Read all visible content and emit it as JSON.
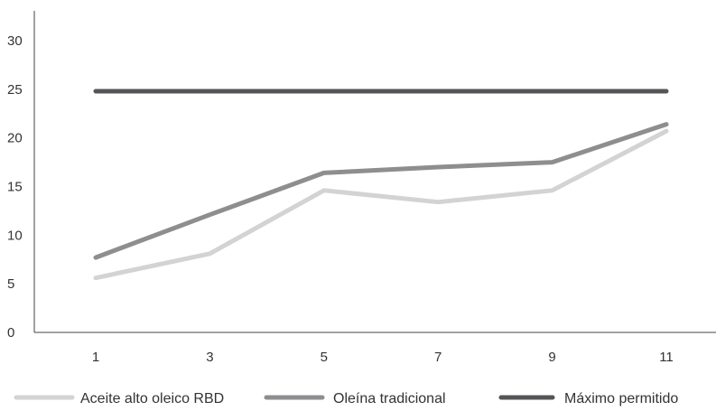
{
  "chart_data": {
    "type": "line",
    "title": "",
    "xlabel": "",
    "ylabel": "",
    "categories": [
      "1",
      "3",
      "5",
      "7",
      "9",
      "11"
    ],
    "y_ticks": [
      "0",
      "5",
      "10",
      "15",
      "20",
      "25",
      "30"
    ],
    "ylim": [
      0,
      30
    ],
    "grid": false,
    "legend_position": "bottom",
    "series": [
      {
        "name": "Aceite alto oleico RBD",
        "values": [
          5.6,
          8.1,
          14.6,
          13.4,
          14.6,
          20.7
        ],
        "color": "#d3d3d3"
      },
      {
        "name": "Oleína tradicional",
        "values": [
          7.7,
          12.1,
          16.4,
          17.0,
          17.5,
          21.4
        ],
        "color": "#8e8e91"
      },
      {
        "name": "Máximo permitido",
        "values": [
          24.8,
          24.8,
          24.8,
          24.8,
          24.8,
          24.8
        ],
        "color": "#555558"
      }
    ]
  }
}
